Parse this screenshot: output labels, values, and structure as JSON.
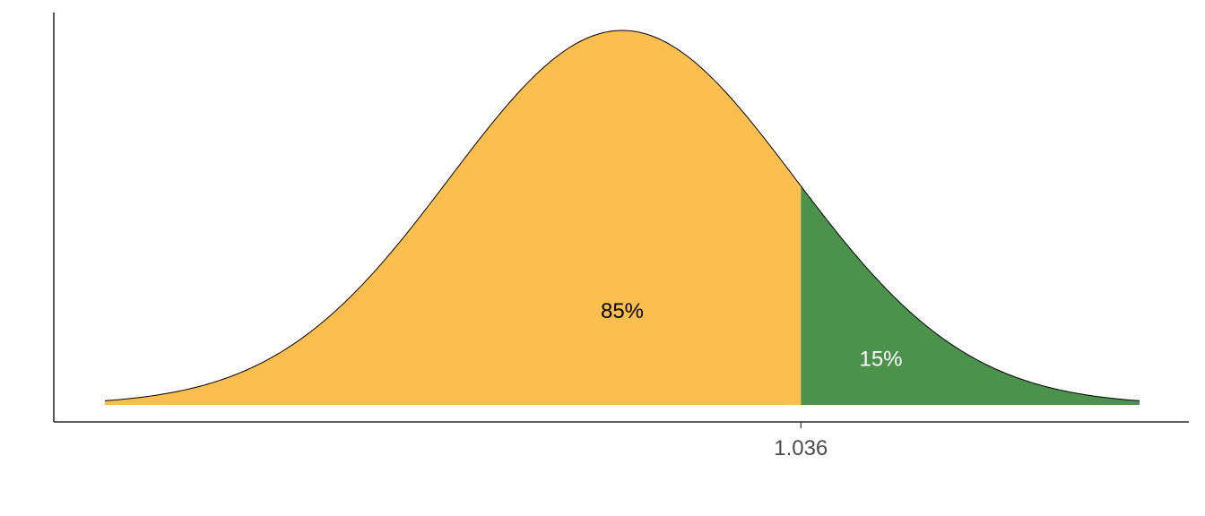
{
  "chart_data": {
    "type": "area",
    "distribution": "normal",
    "mean": 0,
    "sd": 1,
    "xlim": [
      -3,
      3
    ],
    "xticks": [
      1.036
    ],
    "xtick_labels": [
      "1.036"
    ],
    "threshold": 1.036,
    "regions": [
      {
        "range": [
          -3,
          1.036
        ],
        "label": "85%",
        "color": "#fcbe4e",
        "label_color": "#000000",
        "label_x": 0,
        "label_y": 0.1
      },
      {
        "range": [
          1.036,
          3
        ],
        "label": "15%",
        "color": "#4c924c",
        "label_color": "#ffffff",
        "label_x": 1.5,
        "label_y": 0.049
      }
    ],
    "outline_color": "#000000",
    "y_axis_labels": false,
    "grid": false,
    "legend": "none"
  }
}
